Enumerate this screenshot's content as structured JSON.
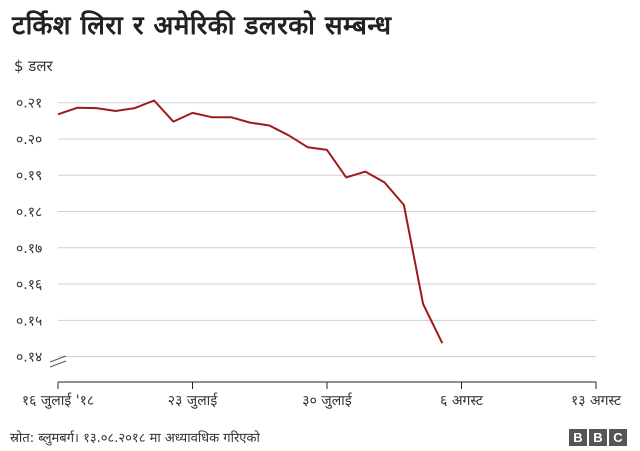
{
  "header": {
    "title": "टर्किश लिरा र अमेरिकी डलरको सम्बन्ध",
    "unit_label": "$ डलर"
  },
  "footer": {
    "source": "स्रोत: ब्लुमबर्ग। १३.०८.२०१८ मा अध्यावधिक गरिएको",
    "logo_letters": [
      "B",
      "B",
      "C"
    ]
  },
  "colors": {
    "line": "#9e1b1b",
    "grid": "#d0d0d0",
    "axis": "#222222"
  },
  "chart_data": {
    "type": "line",
    "title": "टर्किश लिरा र अमेरिकी डलरको सम्बन्ध",
    "ylabel": "$ डलर",
    "ylim": [
      0.133,
      0.2135
    ],
    "axis_break": true,
    "grid": true,
    "yticks": [
      0.14,
      0.15,
      0.16,
      0.17,
      0.18,
      0.19,
      0.2,
      0.21
    ],
    "ytick_labels": [
      "०.१४",
      "०.१५",
      "०.१६",
      "०.१७",
      "०.१८",
      "०.१९",
      "०.२०",
      "०.२१"
    ],
    "xticks": [
      {
        "x": 0,
        "label": "१६ जुलाई '१८"
      },
      {
        "x": 7,
        "label": "२३ जुलाई"
      },
      {
        "x": 14,
        "label": "३० जुलाई"
      },
      {
        "x": 21,
        "label": "६ अगस्ट"
      },
      {
        "x": 28,
        "label": "१३ अगस्ट"
      }
    ],
    "xlim": [
      0,
      28
    ],
    "series": [
      {
        "x": [
          0,
          1,
          2,
          3,
          4,
          5,
          6,
          7,
          8,
          9,
          10,
          11,
          12,
          13,
          14,
          15,
          16,
          17,
          18,
          19,
          20,
          21,
          22,
          23,
          24,
          25,
          26,
          27,
          28
        ],
        "values": [
          0.2068,
          0.2086,
          0.2085,
          0.2077,
          0.2085,
          0.2106,
          0.2048,
          0.2072,
          0.206,
          0.206,
          0.2045,
          0.2037,
          0.201,
          0.1977,
          0.197,
          0.1894,
          0.191,
          0.188,
          0.1818,
          0.1545,
          0.1437,
          null,
          null,
          null,
          null,
          null,
          null,
          null,
          null
        ]
      }
    ]
  }
}
